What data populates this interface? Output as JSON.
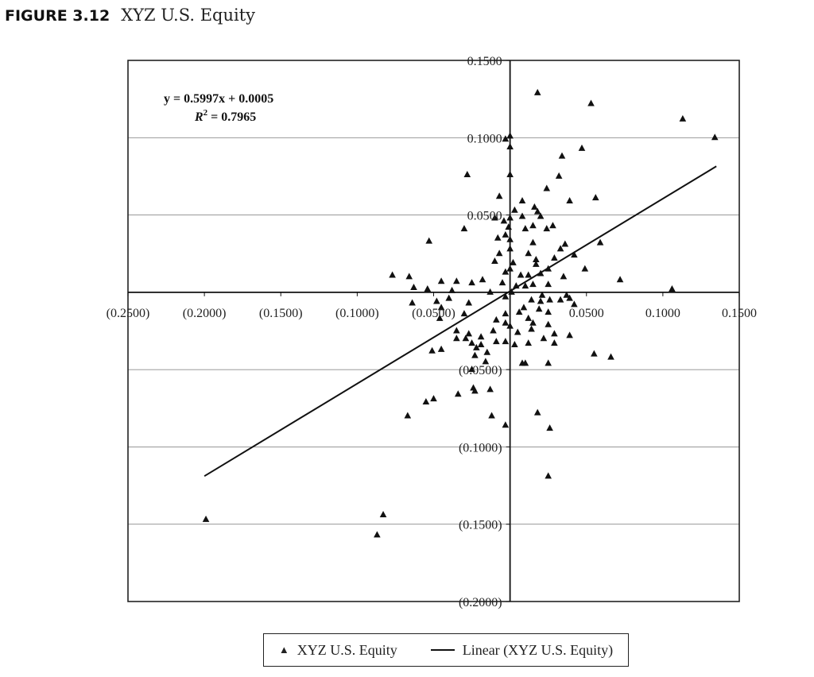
{
  "figure": {
    "label": "FIGURE 3.12",
    "title": "XYZ U.S. Equity"
  },
  "chart_data": {
    "type": "scatter",
    "title": "XYZ U.S. Equity",
    "xlim": [
      -0.25,
      0.15
    ],
    "ylim": [
      -0.2,
      0.15
    ],
    "x_ticks": [
      -0.25,
      -0.2,
      -0.15,
      -0.1,
      -0.05,
      0.05,
      0.1,
      0.15
    ],
    "x_tick_labels": [
      "(0.2500)",
      "(0.2000)",
      "(0.1500)",
      "(0.1000)",
      "(0.0500)",
      "0.0500",
      "0.1000",
      "0.1500"
    ],
    "y_ticks": [
      0.15,
      0.1,
      0.05,
      -0.05,
      -0.1,
      -0.15,
      -0.2
    ],
    "y_tick_labels": [
      "0.1500",
      "0.1000",
      "0.0500",
      "(0.0500)",
      "(0.1000)",
      "(0.1500)",
      "(0.2000)"
    ],
    "grid": "horizontal",
    "legend_position": "bottom",
    "annotation": {
      "equation": "y = 0.5997x + 0.0005",
      "r_squared": "R2 = 0.7965"
    },
    "series": [
      {
        "name": "XYZ U.S. Equity",
        "marker": "triangle",
        "points": [
          [
            -0.199,
            -0.147
          ],
          [
            -0.087,
            -0.157
          ],
          [
            -0.083,
            -0.144
          ],
          [
            0.018,
            0.129
          ],
          [
            0.053,
            0.122
          ],
          [
            0.113,
            0.112
          ],
          [
            0.134,
            0.1
          ],
          [
            -0.003,
            0.099
          ],
          [
            0.0,
            0.101
          ],
          [
            0.0,
            0.094
          ],
          [
            0.047,
            0.093
          ],
          [
            0.034,
            0.088
          ],
          [
            -0.028,
            0.076
          ],
          [
            0.0,
            0.076
          ],
          [
            0.032,
            0.075
          ],
          [
            0.024,
            0.067
          ],
          [
            -0.007,
            0.062
          ],
          [
            0.008,
            0.059
          ],
          [
            0.056,
            0.061
          ],
          [
            0.039,
            0.059
          ],
          [
            0.003,
            0.053
          ],
          [
            0.016,
            0.055
          ],
          [
            0.018,
            0.052
          ],
          [
            0.008,
            0.049
          ],
          [
            0.02,
            0.049
          ],
          [
            0.0,
            0.048
          ],
          [
            -0.01,
            0.048
          ],
          [
            -0.004,
            0.046
          ],
          [
            -0.001,
            0.042
          ],
          [
            0.015,
            0.043
          ],
          [
            -0.03,
            0.041
          ],
          [
            0.028,
            0.043
          ],
          [
            0.01,
            0.041
          ],
          [
            0.024,
            0.041
          ],
          [
            -0.003,
            0.037
          ],
          [
            -0.053,
            0.033
          ],
          [
            0.0,
            0.034
          ],
          [
            -0.008,
            0.035
          ],
          [
            0.015,
            0.032
          ],
          [
            0.036,
            0.031
          ],
          [
            0.059,
            0.032
          ],
          [
            0.033,
            0.028
          ],
          [
            0.0,
            0.028
          ],
          [
            -0.007,
            0.025
          ],
          [
            0.012,
            0.025
          ],
          [
            0.017,
            0.021
          ],
          [
            0.042,
            0.024
          ],
          [
            0.017,
            0.018
          ],
          [
            -0.01,
            0.02
          ],
          [
            0.002,
            0.019
          ],
          [
            0.029,
            0.022
          ],
          [
            0.025,
            0.015
          ],
          [
            0.0,
            0.015
          ],
          [
            0.049,
            0.015
          ],
          [
            0.012,
            0.011
          ],
          [
            -0.003,
            0.013
          ],
          [
            0.02,
            0.012
          ],
          [
            0.035,
            0.01
          ],
          [
            0.007,
            0.011
          ],
          [
            -0.077,
            0.011
          ],
          [
            -0.066,
            0.01
          ],
          [
            0.072,
            0.008
          ],
          [
            -0.018,
            0.008
          ],
          [
            0.015,
            0.005
          ],
          [
            -0.045,
            0.007
          ],
          [
            -0.035,
            0.007
          ],
          [
            -0.025,
            0.006
          ],
          [
            -0.005,
            0.006
          ],
          [
            0.025,
            0.005
          ],
          [
            0.01,
            0.004
          ],
          [
            0.004,
            0.004
          ],
          [
            -0.063,
            0.003
          ],
          [
            -0.054,
            0.002
          ],
          [
            0.106,
            0.002
          ],
          [
            -0.038,
            0.001
          ],
          [
            -0.013,
            0.0
          ],
          [
            0.001,
            0.0
          ],
          [
            0.021,
            -0.002
          ],
          [
            0.037,
            -0.002
          ],
          [
            -0.003,
            -0.003
          ],
          [
            -0.04,
            -0.004
          ],
          [
            0.039,
            -0.004
          ],
          [
            0.014,
            -0.005
          ],
          [
            0.026,
            -0.005
          ],
          [
            0.02,
            -0.006
          ],
          [
            0.033,
            -0.005
          ],
          [
            -0.048,
            -0.006
          ],
          [
            -0.027,
            -0.007
          ],
          [
            -0.064,
            -0.007
          ],
          [
            0.042,
            -0.008
          ],
          [
            0.009,
            -0.01
          ],
          [
            -0.045,
            -0.01
          ],
          [
            0.019,
            -0.011
          ],
          [
            0.025,
            -0.013
          ],
          [
            0.006,
            -0.013
          ],
          [
            -0.03,
            -0.014
          ],
          [
            -0.003,
            -0.014
          ],
          [
            0.012,
            -0.017
          ],
          [
            -0.009,
            -0.018
          ],
          [
            -0.046,
            -0.017
          ],
          [
            -0.003,
            -0.02
          ],
          [
            0.015,
            -0.02
          ],
          [
            0.025,
            -0.021
          ],
          [
            0.0,
            -0.022
          ],
          [
            -0.035,
            -0.025
          ],
          [
            -0.011,
            -0.025
          ],
          [
            0.014,
            -0.024
          ],
          [
            0.005,
            -0.026
          ],
          [
            -0.027,
            -0.027
          ],
          [
            0.029,
            -0.027
          ],
          [
            0.039,
            -0.028
          ],
          [
            -0.019,
            -0.029
          ],
          [
            -0.035,
            -0.03
          ],
          [
            -0.029,
            -0.03
          ],
          [
            0.022,
            -0.03
          ],
          [
            -0.009,
            -0.032
          ],
          [
            -0.025,
            -0.033
          ],
          [
            -0.003,
            -0.032
          ],
          [
            0.029,
            -0.033
          ],
          [
            -0.019,
            -0.034
          ],
          [
            -0.022,
            -0.036
          ],
          [
            0.012,
            -0.033
          ],
          [
            0.003,
            -0.034
          ],
          [
            -0.045,
            -0.037
          ],
          [
            -0.051,
            -0.038
          ],
          [
            -0.015,
            -0.039
          ],
          [
            -0.023,
            -0.041
          ],
          [
            0.055,
            -0.04
          ],
          [
            0.066,
            -0.042
          ],
          [
            -0.016,
            -0.045
          ],
          [
            0.008,
            -0.046
          ],
          [
            0.01,
            -0.046
          ],
          [
            0.025,
            -0.046
          ],
          [
            -0.025,
            -0.05
          ],
          [
            -0.024,
            -0.062
          ],
          [
            -0.013,
            -0.063
          ],
          [
            -0.023,
            -0.064
          ],
          [
            -0.034,
            -0.066
          ],
          [
            -0.05,
            -0.069
          ],
          [
            -0.055,
            -0.071
          ],
          [
            -0.067,
            -0.08
          ],
          [
            -0.012,
            -0.08
          ],
          [
            0.018,
            -0.078
          ],
          [
            -0.003,
            -0.086
          ],
          [
            0.026,
            -0.088
          ],
          [
            0.025,
            -0.119
          ]
        ]
      },
      {
        "name": "Linear (XYZ U.S. Equity)",
        "type": "line",
        "x": [
          -0.2,
          0.135
        ],
        "y": [
          -0.1189,
          0.0815
        ]
      }
    ]
  },
  "legend": {
    "series1_label": "XYZ U.S. Equity",
    "series2_label": "Linear (XYZ U.S. Equity)"
  }
}
